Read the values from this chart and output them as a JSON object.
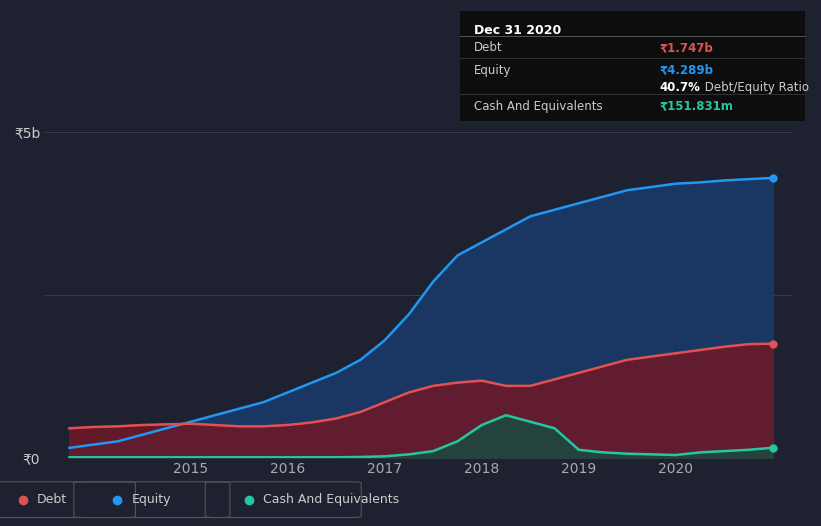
{
  "bg_color": "#1e2130",
  "plot_bg_color": "#1e2130",
  "tooltip": {
    "date": "Dec 31 2020",
    "debt_label": "Debt",
    "debt_value": "₹1.747b",
    "equity_label": "Equity",
    "equity_value": "₹4.289b",
    "ratio_bold": "40.7%",
    "ratio_rest": " Debt/Equity Ratio",
    "cash_label": "Cash And Equivalents",
    "cash_value": "₹151.831m"
  },
  "ylabel_5b": "₹5b",
  "ylabel_0": "₹0",
  "x_ticks": [
    "2015",
    "2016",
    "2017",
    "2018",
    "2019",
    "2020"
  ],
  "debt_color": "#e05252",
  "equity_color": "#2196f3",
  "cash_color": "#26c6a0",
  "debt_fill": "#6a1a2a",
  "equity_fill": "#1a3a6a",
  "cash_fill": "#1a4a40",
  "ylim": [
    0,
    5000000000
  ],
  "xlim_start": 2013.5,
  "xlim_end": 2021.2,
  "time_x": [
    2013.75,
    2014.0,
    2014.25,
    2014.5,
    2014.75,
    2015.0,
    2015.25,
    2015.5,
    2015.75,
    2016.0,
    2016.25,
    2016.5,
    2016.75,
    2017.0,
    2017.25,
    2017.5,
    2017.75,
    2018.0,
    2018.25,
    2018.5,
    2018.75,
    2019.0,
    2019.25,
    2019.5,
    2019.75,
    2020.0,
    2020.25,
    2020.5,
    2020.75,
    2021.0
  ],
  "debt_y": [
    450000000,
    470000000,
    480000000,
    500000000,
    510000000,
    520000000,
    500000000,
    480000000,
    480000000,
    500000000,
    540000000,
    600000000,
    700000000,
    850000000,
    1000000000,
    1100000000,
    1150000000,
    1180000000,
    1100000000,
    1100000000,
    1200000000,
    1300000000,
    1400000000,
    1500000000,
    1550000000,
    1600000000,
    1650000000,
    1700000000,
    1740000000,
    1747000000
  ],
  "equity_y": [
    150000000,
    200000000,
    250000000,
    350000000,
    450000000,
    550000000,
    650000000,
    750000000,
    850000000,
    1000000000,
    1150000000,
    1300000000,
    1500000000,
    1800000000,
    2200000000,
    2700000000,
    3100000000,
    3300000000,
    3500000000,
    3700000000,
    3800000000,
    3900000000,
    4000000000,
    4100000000,
    4150000000,
    4200000000,
    4220000000,
    4250000000,
    4270000000,
    4289000000
  ],
  "cash_y": [
    5000000,
    5000000,
    5000000,
    5000000,
    5000000,
    5000000,
    5000000,
    5000000,
    5000000,
    5000000,
    5000000,
    5000000,
    10000000,
    20000000,
    50000000,
    100000000,
    250000000,
    500000000,
    650000000,
    550000000,
    450000000,
    120000000,
    80000000,
    60000000,
    50000000,
    40000000,
    80000000,
    100000000,
    120000000,
    151831000
  ]
}
